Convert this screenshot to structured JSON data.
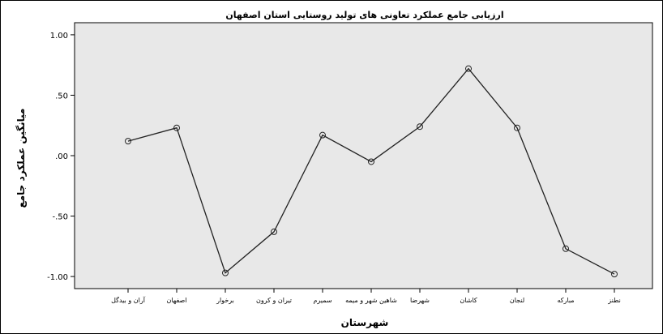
{
  "chart_data": {
    "type": "line",
    "title": "ارزیابی جامع عملکرد تعاونی های تولید روستایی استان اصفهان",
    "xlabel": "شهرستان",
    "ylabel": "میانگین عملکرد جامع",
    "ylim": [
      -1.1,
      1.1
    ],
    "y_ticks": [
      1.0,
      0.5,
      0.0,
      -0.5,
      -1.0
    ],
    "y_tick_labels": [
      "1.00",
      ".50",
      ".00",
      "-.50",
      "-1.00"
    ],
    "grid": false,
    "categories": [
      "آران و بیدگل",
      "اصفهان",
      "برخوار",
      "تیران و کرون",
      "سمیرم",
      "شاهین شهر و میمه",
      "شهرضا",
      "کاشان",
      "لنجان",
      "مبارکه",
      "نطنز"
    ],
    "series": [
      {
        "values": [
          0.12,
          0.23,
          -0.97,
          -0.63,
          0.17,
          -0.05,
          0.24,
          0.72,
          0.23,
          -0.77,
          -0.98
        ]
      }
    ],
    "colors": {
      "plot_bg": "#e8e8e8",
      "line": "#222222",
      "frame": "#000000"
    }
  }
}
